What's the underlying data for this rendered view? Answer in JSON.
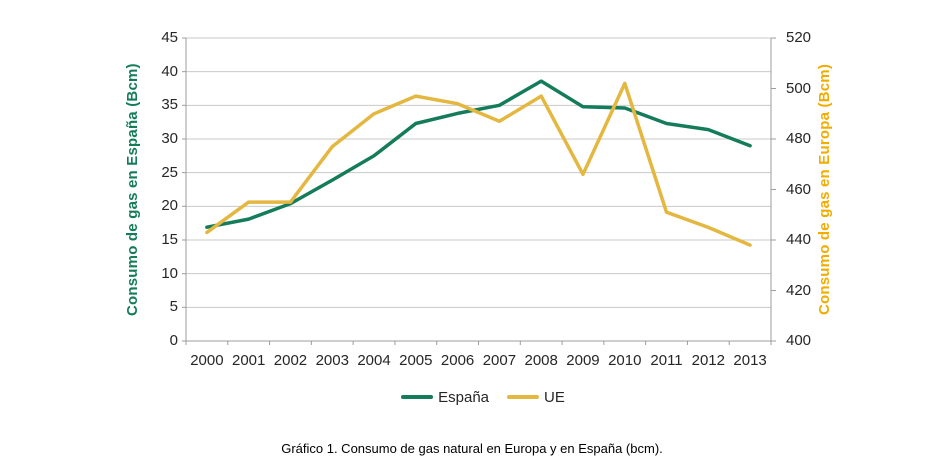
{
  "chart_data": {
    "type": "line",
    "title": "",
    "categories": [
      "2000",
      "2001",
      "2002",
      "2003",
      "2004",
      "2005",
      "2006",
      "2007",
      "2008",
      "2009",
      "2010",
      "2011",
      "2012",
      "2013"
    ],
    "series": [
      {
        "name": "España",
        "axis": "left",
        "color": "#157C5B",
        "values": [
          16.9,
          18.1,
          20.4,
          23.9,
          27.5,
          32.3,
          33.8,
          35.0,
          38.6,
          34.8,
          34.6,
          32.3,
          31.4,
          29.0
        ]
      },
      {
        "name": "UE",
        "axis": "right",
        "color": "#E3B740",
        "values": [
          443,
          455,
          455,
          477,
          490,
          497,
          494,
          487,
          497,
          466,
          502,
          451,
          445,
          438
        ]
      }
    ],
    "left_axis": {
      "label": "Consumo de gas en España (Bcm)",
      "min": 0,
      "max": 45,
      "step": 5,
      "tick_labels": [
        "45",
        "40",
        "35",
        "30",
        "25",
        "20",
        "15",
        "10",
        "5",
        "0"
      ],
      "color": "#157C5B"
    },
    "right_axis": {
      "label": "Consumo de gas en Europa (Bcm)",
      "min": 400,
      "max": 520,
      "step": 20,
      "tick_labels": [
        "520",
        "500",
        "480",
        "460",
        "440",
        "420",
        "400"
      ],
      "color": "#F2AC00"
    },
    "legend": {
      "position": "bottom",
      "entries": [
        "España",
        "UE"
      ]
    },
    "grid": true
  },
  "caption": "Gráfico 1. Consumo de gas natural en Europa y en España (bcm)."
}
